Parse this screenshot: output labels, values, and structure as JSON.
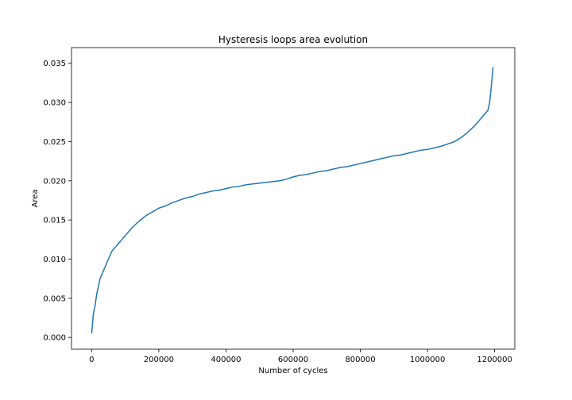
{
  "chart_data": {
    "type": "line",
    "title": "Hysteresis loops area evolution",
    "xlabel": "Number of cycles",
    "ylabel": "Area",
    "xlim": [
      -60000,
      1260000
    ],
    "ylim": [
      -0.0015,
      0.037
    ],
    "xticks": [
      0,
      200000,
      400000,
      600000,
      800000,
      1000000,
      1200000
    ],
    "xtick_labels": [
      "0",
      "200000",
      "400000",
      "600000",
      "800000",
      "1000000",
      "1200000"
    ],
    "yticks": [
      0.0,
      0.005,
      0.01,
      0.015,
      0.02,
      0.025,
      0.03,
      0.035
    ],
    "ytick_labels": [
      "0.000",
      "0.005",
      "0.010",
      "0.015",
      "0.020",
      "0.025",
      "0.030",
      "0.035"
    ],
    "grid": false,
    "series": [
      {
        "color": "#1f77b4",
        "x": [
          0,
          5000,
          10000,
          15000,
          20000,
          25000,
          30000,
          40000,
          50000,
          60000,
          70000,
          80000,
          90000,
          100000,
          120000,
          140000,
          160000,
          180000,
          200000,
          220000,
          240000,
          260000,
          280000,
          300000,
          320000,
          340000,
          360000,
          380000,
          400000,
          420000,
          440000,
          460000,
          480000,
          500000,
          520000,
          540000,
          560000,
          580000,
          600000,
          620000,
          640000,
          660000,
          680000,
          700000,
          720000,
          740000,
          760000,
          780000,
          800000,
          820000,
          840000,
          860000,
          880000,
          900000,
          920000,
          940000,
          960000,
          980000,
          1000000,
          1020000,
          1040000,
          1060000,
          1080000,
          1100000,
          1120000,
          1140000,
          1160000,
          1170000,
          1180000,
          1185000,
          1190000,
          1195000
        ],
        "y": [
          0.0005,
          0.003,
          0.004,
          0.0055,
          0.0065,
          0.0075,
          0.008,
          0.009,
          0.01,
          0.011,
          0.0115,
          0.012,
          0.0125,
          0.013,
          0.014,
          0.0148,
          0.0155,
          0.016,
          0.0165,
          0.0168,
          0.0172,
          0.0175,
          0.0178,
          0.018,
          0.0183,
          0.0185,
          0.0187,
          0.0188,
          0.019,
          0.0192,
          0.0193,
          0.0195,
          0.0196,
          0.0197,
          0.0198,
          0.0199,
          0.02,
          0.0202,
          0.0205,
          0.0207,
          0.0208,
          0.021,
          0.0212,
          0.0213,
          0.0215,
          0.0217,
          0.0218,
          0.022,
          0.0222,
          0.0224,
          0.0226,
          0.0228,
          0.023,
          0.0232,
          0.0233,
          0.0235,
          0.0237,
          0.0239,
          0.024,
          0.0242,
          0.0244,
          0.0247,
          0.025,
          0.0255,
          0.0262,
          0.027,
          0.028,
          0.0285,
          0.029,
          0.03,
          0.032,
          0.0345
        ]
      }
    ]
  }
}
